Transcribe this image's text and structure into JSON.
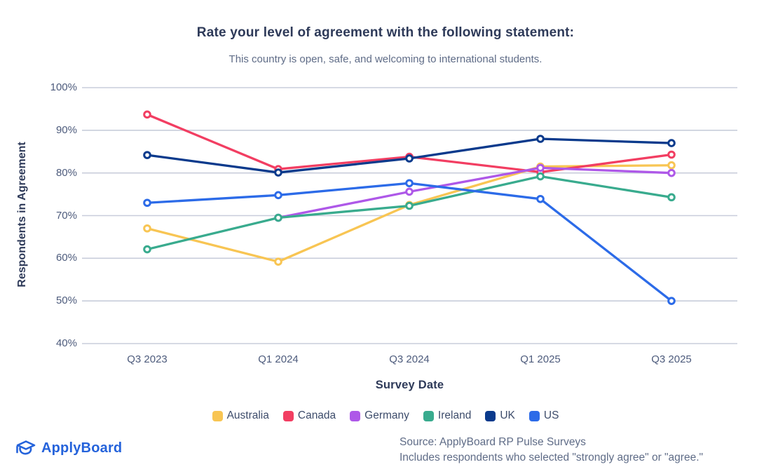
{
  "title": "Rate your level of agreement with the following statement:",
  "subtitle": "This country is open, safe, and welcoming to international students.",
  "chart_data": {
    "type": "line",
    "categories": [
      "Q3 2023",
      "Q1 2024",
      "Q3 2024",
      "Q1 2025",
      "Q3 2025"
    ],
    "series": [
      {
        "name": "Australia",
        "color": "#F8C553",
        "values": [
          67,
          59.2,
          72.5,
          81.5,
          81.8
        ]
      },
      {
        "name": "Canada",
        "color": "#F23E62",
        "values": [
          93.7,
          80.9,
          83.8,
          80.2,
          84.3
        ]
      },
      {
        "name": "Germany",
        "color": "#AE58E8",
        "values": [
          null,
          69.5,
          75.6,
          81.2,
          80
        ]
      },
      {
        "name": "Ireland",
        "color": "#39AB8E",
        "values": [
          62.1,
          69.5,
          72.3,
          79.2,
          74.3
        ]
      },
      {
        "name": "UK",
        "color": "#0A3A8C",
        "values": [
          84.2,
          80.1,
          83.4,
          88,
          87
        ]
      },
      {
        "name": "US",
        "color": "#2C6BE8",
        "values": [
          73,
          74.8,
          77.6,
          73.9,
          50
        ]
      }
    ],
    "xlabel": "Survey Date",
    "ylabel": "Respondents in Agreement",
    "ylim": [
      40,
      100
    ],
    "yticks": [
      {
        "value": 100,
        "label": "100%"
      },
      {
        "value": 90,
        "label": "90%"
      },
      {
        "value": 80,
        "label": "80%"
      },
      {
        "value": 70,
        "label": "70%"
      },
      {
        "value": 60,
        "label": "60%"
      },
      {
        "value": 50,
        "label": "50%"
      },
      {
        "value": 40,
        "label": "40%"
      }
    ],
    "grid": "horizontal",
    "grid_color": "#C8CDDB",
    "legend_position": "bottom"
  },
  "footer": {
    "logo_text": "ApplyBoard",
    "logo_color": "#2563DB",
    "source_line1": "Source: ApplyBoard RP Pulse Surveys",
    "source_line2": "Includes respondents who selected \"strongly agree\" or \"agree.\""
  }
}
